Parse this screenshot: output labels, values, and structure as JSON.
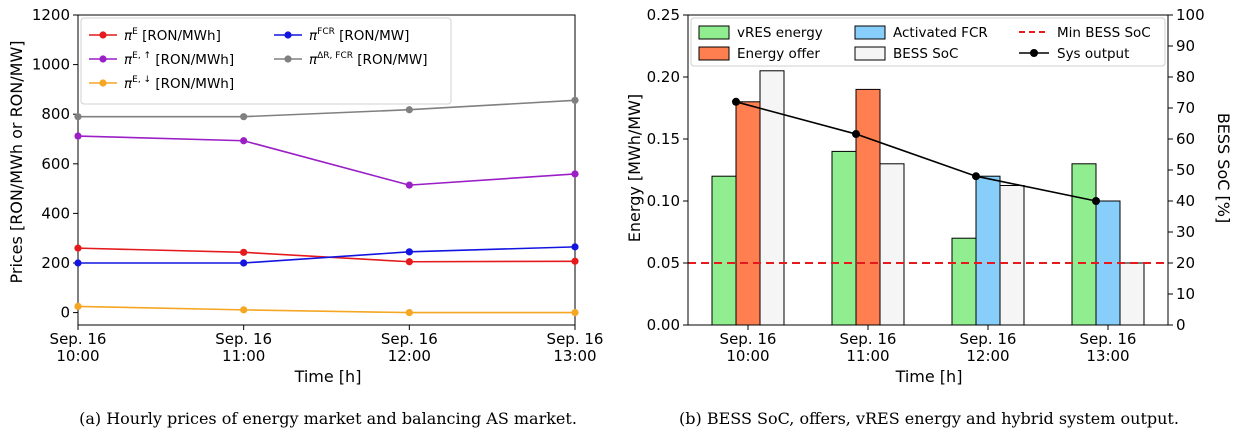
{
  "chart_data": [
    {
      "type": "line",
      "x": [
        "Sep. 16\n10:00",
        "Sep. 16\n11:00",
        "Sep. 16\n12:00",
        "Sep. 16\n13:00"
      ],
      "xlabel": "Time [h]",
      "ylabel": "Prices [RON/MWh or RON/MW]",
      "ylim": [
        -50,
        1200
      ],
      "yticks": [
        0,
        200,
        400,
        600,
        800,
        1000,
        1200
      ],
      "grid": false,
      "legend": "top",
      "series": [
        {
          "name_base": "π",
          "name_sup": "E",
          "name_unit": "[RON/MWh]",
          "color": "#e41a1c",
          "values": [
            260,
            243,
            205,
            207
          ]
        },
        {
          "name_base": "π",
          "name_sup": "E, ↑",
          "name_unit": "[RON/MWh]",
          "color": "#9b1fc6",
          "values": [
            712,
            693,
            514,
            559
          ]
        },
        {
          "name_base": "π",
          "name_sup": "E, ↓",
          "name_unit": "[RON/MWh]",
          "color": "#f5a623",
          "values": [
            25,
            11,
            0,
            0
          ]
        },
        {
          "name_base": "π",
          "name_sup": "FCR",
          "name_unit": "[RON/MW]",
          "color": "#1414e0",
          "values": [
            200,
            200,
            245,
            265
          ]
        },
        {
          "name_base": "π",
          "name_sup": "ΔR, FCR",
          "name_unit": "[RON/MW]",
          "color": "#808080",
          "values": [
            790,
            790,
            818,
            856
          ]
        }
      ],
      "caption": "(a) Hourly prices of energy market and balancing AS market."
    },
    {
      "type": "bar",
      "categories": [
        "Sep. 16\n10:00",
        "Sep. 16\n11:00",
        "Sep. 16\n12:00",
        "Sep. 16\n13:00"
      ],
      "xlabel": "Time [h]",
      "ylabel": "Energy [MWh/MW]",
      "ylim": [
        0,
        0.25
      ],
      "yticks": [
        "0.00",
        "0.05",
        "0.10",
        "0.15",
        "0.20",
        "0.25"
      ],
      "y2label": "BESS SoC [%]",
      "y2lim": [
        0,
        100
      ],
      "y2ticks": [
        0,
        10,
        20,
        30,
        40,
        50,
        60,
        70,
        80,
        90,
        100
      ],
      "grid": false,
      "legend": "top",
      "series": [
        {
          "name": "vRES energy",
          "color": "#90ee90",
          "axis": "left",
          "values": [
            0.12,
            0.14,
            0.07,
            0.13
          ]
        },
        {
          "name": "Energy offer",
          "color": "#ff7f50",
          "axis": "left",
          "values": [
            0.18,
            0.19,
            null,
            null
          ]
        },
        {
          "name": "Activated FCR",
          "color": "#87cefa",
          "axis": "left",
          "values": [
            null,
            null,
            0.12,
            0.1
          ]
        },
        {
          "name": "BESS SoC",
          "color": "#f5f5f5",
          "axis": "right",
          "values": [
            82,
            52,
            45,
            20
          ]
        },
        {
          "name": "Min BESS SoC",
          "color": "#e41a1c",
          "style": "dashed",
          "axis": "left",
          "value": 0.05
        },
        {
          "name": "Sys output",
          "color": "#000000",
          "style": "line-marker",
          "axis": "left",
          "values": [
            0.18,
            0.154,
            0.12,
            0.1
          ]
        }
      ],
      "caption": "(b) BESS SoC, offers, vRES energy and hybrid system output."
    }
  ]
}
